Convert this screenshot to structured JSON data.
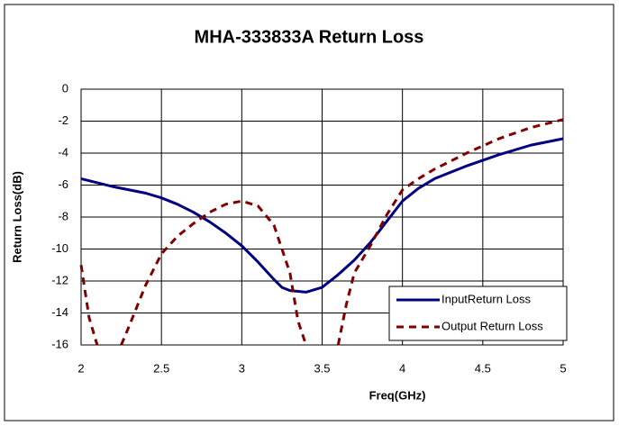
{
  "chart_data": {
    "type": "line",
    "title": "MHA-333833A Return Loss",
    "xlabel": "Freq(GHz)",
    "ylabel": "Return Loss(dB)",
    "xlim": [
      2,
      5
    ],
    "xticks": [
      2,
      2.5,
      3,
      3.5,
      4,
      4.5,
      5
    ],
    "ylim": [
      -16,
      0
    ],
    "yticks": [
      0,
      -2,
      -4,
      -6,
      -8,
      -10,
      -12,
      -14,
      -16
    ],
    "grid": true,
    "legend": "lower right",
    "series": [
      {
        "name": "InputReturn Loss",
        "color": "#000080",
        "style": "solid",
        "x": [
          2.0,
          2.2,
          2.4,
          2.5,
          2.6,
          2.7,
          2.8,
          2.9,
          3.0,
          3.1,
          3.2,
          3.25,
          3.3,
          3.4,
          3.5,
          3.6,
          3.7,
          3.8,
          3.9,
          4.0,
          4.1,
          4.2,
          4.4,
          4.6,
          4.8,
          5.0
        ],
        "values": [
          -5.6,
          -6.1,
          -6.5,
          -6.8,
          -7.2,
          -7.7,
          -8.3,
          -9.0,
          -9.8,
          -10.8,
          -11.9,
          -12.4,
          -12.6,
          -12.7,
          -12.4,
          -11.6,
          -10.7,
          -9.6,
          -8.3,
          -7.0,
          -6.2,
          -5.6,
          -4.8,
          -4.1,
          -3.5,
          -3.1
        ]
      },
      {
        "name": "Output Return Loss",
        "color": "#800000",
        "style": "dashed",
        "x": [
          2.0,
          2.05,
          2.1,
          2.17,
          2.25,
          2.3,
          2.4,
          2.5,
          2.6,
          2.7,
          2.8,
          2.9,
          3.0,
          3.1,
          3.2,
          3.3,
          3.35,
          3.4,
          3.5,
          3.6,
          3.65,
          3.7,
          3.8,
          3.9,
          4.0,
          4.1,
          4.2,
          4.4,
          4.6,
          4.8,
          5.0
        ],
        "values": [
          -11.0,
          -14.3,
          -16.0,
          null,
          -16.0,
          -14.8,
          -12.3,
          -10.3,
          -9.2,
          -8.4,
          -7.7,
          -7.2,
          -7.0,
          -7.3,
          -8.5,
          -11.5,
          -14.5,
          -16.0,
          null,
          -16.0,
          -13.5,
          -11.5,
          -9.8,
          -7.9,
          -6.3,
          -5.6,
          -5.0,
          -4.0,
          -3.1,
          -2.4,
          -1.9
        ]
      }
    ]
  }
}
